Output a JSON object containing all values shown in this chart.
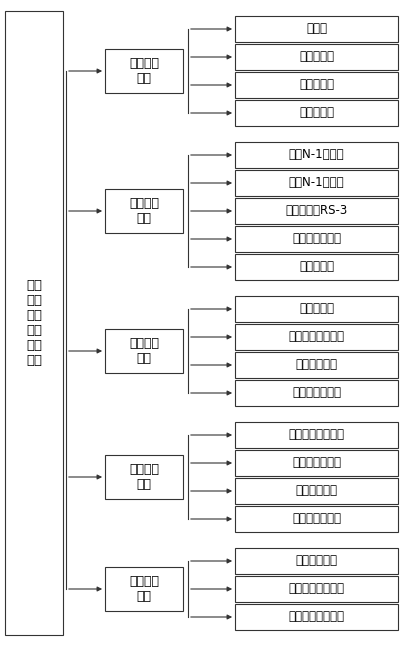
{
  "root_label": "县域\n电网\n发展\n需求\n指标\n体系",
  "level2": [
    {
      "label": "基础供电\n需求",
      "idx": 0
    },
    {
      "label": "可靠优质\n需求",
      "idx": 1
    },
    {
      "label": "经济高效\n需求",
      "idx": 2
    },
    {
      "label": "环保协调\n需求",
      "idx": 3
    },
    {
      "label": "智能交互\n需求",
      "idx": 4
    }
  ],
  "level3_groups": [
    [
      "容载比",
      "电量总缺口",
      "线变老旧率",
      "负荷增长率"
    ],
    [
      "线路N-1通过率",
      "主变N-1通过率",
      "供电可靠率RS-3",
      "综合电压合格率",
      "线变重载率"
    ],
    [
      "综合线损率",
      "系统设备利用效率",
      "线路绝缘化率",
      "最大利用小时数"
    ],
    [
      "清洁能源发电占比",
      "中压线路联络率",
      "线变容量配比",
      "可转移负荷占比"
    ],
    [
      "智能电表比例",
      "电力客户服务系统",
      "配电自动化覆盖率"
    ]
  ],
  "bg_color": "#ffffff",
  "box_color": "#ffffff",
  "box_edge_color": "#333333",
  "line_color": "#333333",
  "text_color": "#000000"
}
